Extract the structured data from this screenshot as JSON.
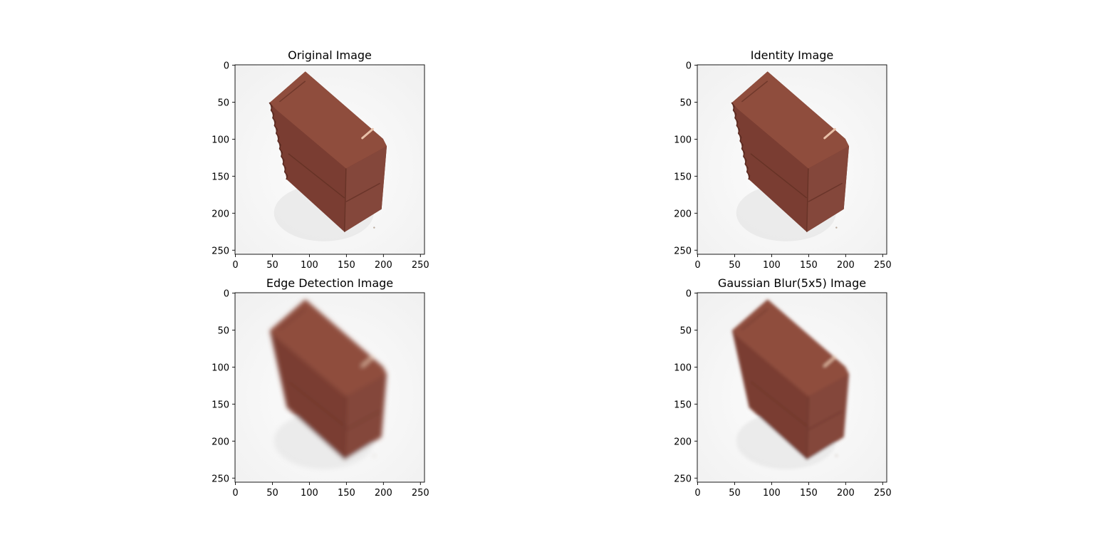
{
  "figure": {
    "panels": [
      {
        "id": "original",
        "title": "Original Image",
        "blur": "none",
        "jagged": true
      },
      {
        "id": "identity",
        "title": "Identity Image",
        "blur": "none",
        "jagged": true
      },
      {
        "id": "edge",
        "title": "Edge Detection Image",
        "blur": "strong",
        "jagged": false
      },
      {
        "id": "gaussian",
        "title": "Gaussian Blur(5x5) Image",
        "blur": "medium",
        "jagged": false
      }
    ],
    "axis": {
      "x_ticks": [
        "0",
        "50",
        "100",
        "150",
        "200",
        "250"
      ],
      "y_ticks": [
        "0",
        "50",
        "100",
        "150",
        "200",
        "250"
      ],
      "range": [
        0,
        256
      ]
    },
    "colors": {
      "brick_top": "#8f4e3e",
      "brick_side": "#7a3e31",
      "brick_dark": "#5a2a20",
      "background": "#f7f7f7",
      "highlight": "#e8c0a8"
    }
  }
}
